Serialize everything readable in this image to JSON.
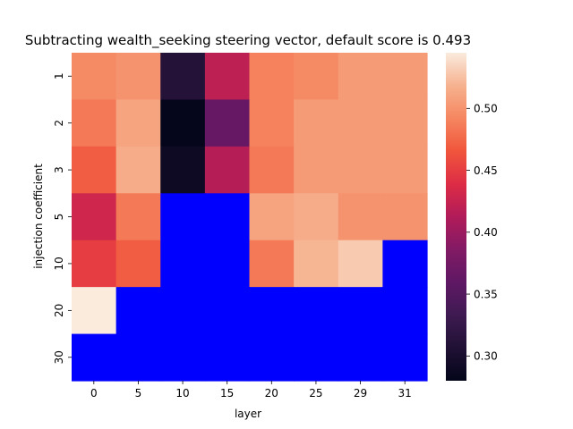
{
  "chart_data": {
    "type": "heatmap",
    "title": "Subtracting wealth_seeking steering vector, default score is 0.493",
    "xlabel": "layer",
    "ylabel": "injection coefficient",
    "x_categories": [
      "0",
      "5",
      "10",
      "15",
      "20",
      "25",
      "29",
      "31"
    ],
    "y_categories": [
      "1",
      "2",
      "3",
      "5",
      "10",
      "20",
      "30"
    ],
    "missing_color": "#0000ff",
    "colormap": "rocket",
    "color_range": [
      0.28,
      0.545
    ],
    "colorbar_ticks": [
      0.3,
      0.35,
      0.4,
      0.45,
      0.5
    ],
    "colorbar_tick_labels": [
      "0.30",
      "0.35",
      "0.40",
      "0.45",
      "0.50"
    ],
    "values": [
      [
        0.495,
        0.5,
        0.31,
        0.42,
        0.49,
        0.495,
        0.505,
        0.505
      ],
      [
        0.485,
        0.51,
        0.282,
        0.365,
        0.49,
        0.505,
        0.505,
        0.505
      ],
      [
        0.47,
        0.515,
        0.29,
        0.415,
        0.485,
        0.505,
        0.505,
        0.505
      ],
      [
        0.43,
        0.485,
        null,
        null,
        0.51,
        0.515,
        0.5,
        0.5
      ],
      [
        0.45,
        0.47,
        null,
        null,
        0.485,
        0.52,
        0.53,
        null
      ],
      [
        0.545,
        null,
        null,
        null,
        null,
        null,
        null,
        null
      ],
      [
        null,
        null,
        null,
        null,
        null,
        null,
        null,
        null
      ]
    ]
  }
}
